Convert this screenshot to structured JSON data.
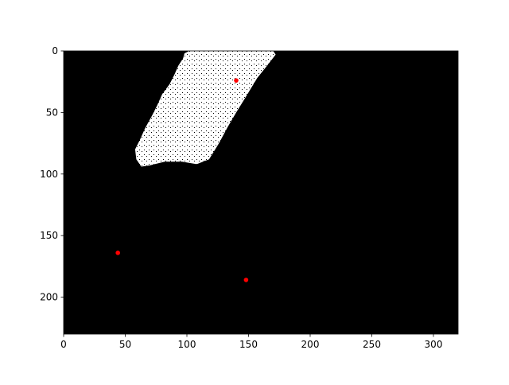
{
  "chart_data": {
    "type": "heatmap",
    "title": "",
    "xlabel": "",
    "ylabel": "",
    "image_width": 320,
    "image_height": 230,
    "xlim": [
      0,
      320
    ],
    "ylim": [
      230,
      0
    ],
    "x_ticks": [
      "0",
      "50",
      "100",
      "150",
      "200",
      "250",
      "300"
    ],
    "y_ticks": [
      "0",
      "50",
      "100",
      "150",
      "200"
    ],
    "grid": false,
    "background_color": "#000000",
    "mask_color": "#ffffff",
    "point_color": "#ff0000",
    "mask_region": [
      [
        102,
        0
      ],
      [
        170,
        0
      ],
      [
        172,
        3
      ],
      [
        165,
        12
      ],
      [
        157,
        22
      ],
      [
        148,
        37
      ],
      [
        140,
        50
      ],
      [
        133,
        62
      ],
      [
        126,
        75
      ],
      [
        118,
        88
      ],
      [
        108,
        92
      ],
      [
        96,
        90
      ],
      [
        82,
        90
      ],
      [
        70,
        93
      ],
      [
        63,
        94
      ],
      [
        59,
        88
      ],
      [
        58,
        80
      ],
      [
        62,
        72
      ],
      [
        66,
        63
      ],
      [
        72,
        52
      ],
      [
        76,
        44
      ],
      [
        80,
        35
      ],
      [
        86,
        27
      ],
      [
        90,
        19
      ],
      [
        93,
        12
      ],
      [
        97,
        6
      ],
      [
        98,
        2
      ]
    ],
    "points": [
      {
        "x": 140,
        "y": 24
      },
      {
        "x": 44,
        "y": 164
      },
      {
        "x": 148,
        "y": 186
      }
    ]
  }
}
